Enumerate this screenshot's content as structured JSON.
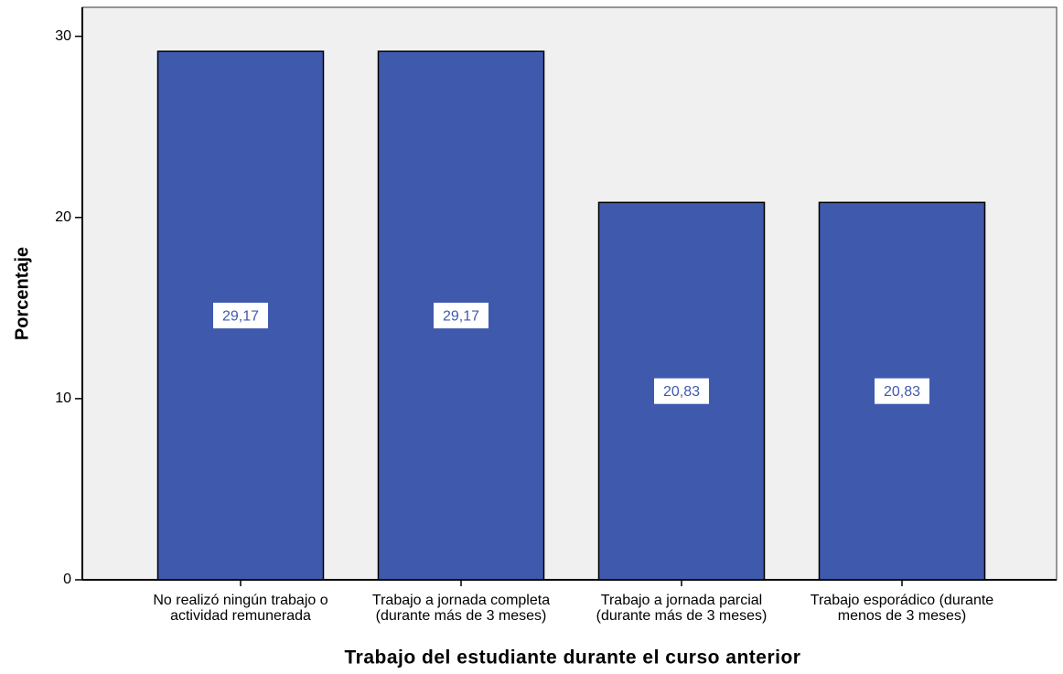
{
  "chart_data": {
    "type": "bar",
    "x_label": "Trabajo del estudiante durante el curso anterior",
    "y_label": "Porcentaje",
    "categories": [
      "No realizó ningún trabajo o actividad remunerada",
      "Trabajo a jornada completa (durante más de 3 meses)",
      "Trabajo a jornada parcial (durante más de 3 meses)",
      "Trabajo esporádico (durante menos de 3 meses)"
    ],
    "values": [
      29.17,
      29.17,
      20.83,
      20.83
    ],
    "value_labels": [
      "29,17",
      "29,17",
      "20,83",
      "20,83"
    ],
    "color": "#3f59ad",
    "ylim": [
      0,
      31.6
    ],
    "yticks": [
      0,
      10,
      20,
      30
    ]
  }
}
